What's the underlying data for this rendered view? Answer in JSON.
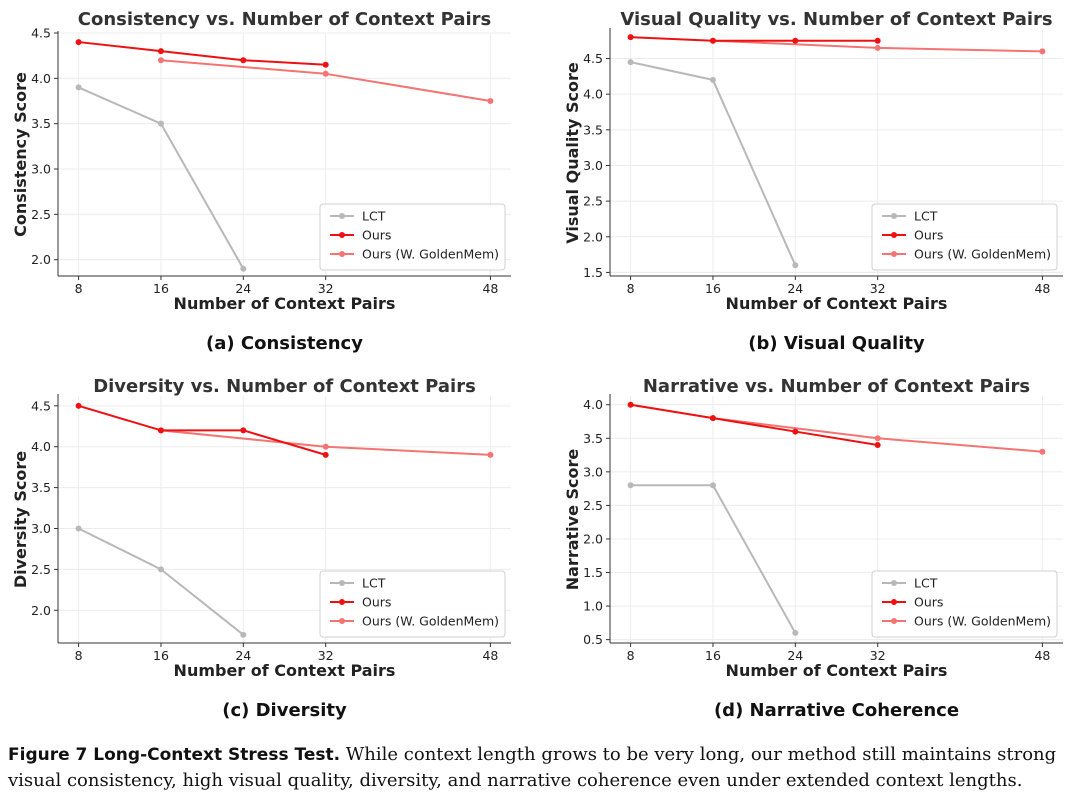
{
  "chart_data": [
    {
      "type": "line",
      "panel_label": "(a)  Consistency",
      "title": "Consistency vs. Number of Context Pairs",
      "xlabel": "Number of Context Pairs",
      "ylabel": "Consistency Score",
      "xticks": [
        8,
        16,
        24,
        32,
        48
      ],
      "yticks": [
        2.0,
        2.5,
        3.0,
        3.5,
        4.0,
        4.5
      ],
      "xlim": [
        6.0,
        50.0
      ],
      "ylim": [
        1.82,
        4.5
      ],
      "grid": true,
      "legend": "lower-right",
      "series": [
        {
          "name": "LCT",
          "color": "#b8b8b8",
          "x": [
            8,
            16,
            24
          ],
          "values": [
            3.9,
            3.5,
            1.9
          ]
        },
        {
          "name": "Ours",
          "color": "#ee1111",
          "x": [
            8,
            16,
            24,
            32
          ],
          "values": [
            4.4,
            4.3,
            4.2,
            4.15
          ]
        },
        {
          "name": "Ours (W. GoldenMem)",
          "color": "#f47474",
          "x": [
            16,
            32,
            48
          ],
          "values": [
            4.2,
            4.05,
            3.75
          ]
        }
      ]
    },
    {
      "type": "line",
      "panel_label": "(b)  Visual Quality",
      "title": "Visual Quality vs. Number of Context Pairs",
      "xlabel": "Number of Context Pairs",
      "ylabel": "Visual Quality Score",
      "xticks": [
        8,
        16,
        24,
        32,
        48
      ],
      "yticks": [
        1.5,
        2.0,
        2.5,
        3.0,
        3.5,
        4.0,
        4.5
      ],
      "xlim": [
        6.0,
        50.0
      ],
      "ylim": [
        1.45,
        4.9
      ],
      "grid": true,
      "legend": "lower-right",
      "series": [
        {
          "name": "LCT",
          "color": "#b8b8b8",
          "x": [
            8,
            16,
            24
          ],
          "values": [
            4.45,
            4.2,
            1.6
          ]
        },
        {
          "name": "Ours",
          "color": "#ee1111",
          "x": [
            8,
            16,
            24,
            32
          ],
          "values": [
            4.8,
            4.75,
            4.75,
            4.75
          ]
        },
        {
          "name": "Ours (W. GoldenMem)",
          "color": "#f47474",
          "x": [
            16,
            32,
            48
          ],
          "values": [
            4.75,
            4.65,
            4.6
          ]
        }
      ]
    },
    {
      "type": "line",
      "panel_label": "(c)  Diversity",
      "title": "Diversity vs. Number of Context Pairs",
      "xlabel": "Number of Context Pairs",
      "ylabel": "Diversity Score",
      "xticks": [
        8,
        16,
        24,
        32,
        48
      ],
      "yticks": [
        2.0,
        2.5,
        3.0,
        3.5,
        4.0,
        4.5
      ],
      "xlim": [
        6.0,
        50.0
      ],
      "ylim": [
        1.6,
        4.62
      ],
      "grid": true,
      "legend": "lower-right",
      "series": [
        {
          "name": "LCT",
          "color": "#b8b8b8",
          "x": [
            8,
            16,
            24
          ],
          "values": [
            3.0,
            2.5,
            1.7
          ]
        },
        {
          "name": "Ours",
          "color": "#ee1111",
          "x": [
            8,
            16,
            24,
            32
          ],
          "values": [
            4.5,
            4.2,
            4.2,
            3.9
          ]
        },
        {
          "name": "Ours (W. GoldenMem)",
          "color": "#f47474",
          "x": [
            16,
            32,
            48
          ],
          "values": [
            4.2,
            4.0,
            3.9
          ]
        }
      ]
    },
    {
      "type": "line",
      "panel_label": "(d)  Narrative Coherence",
      "title": "Narrative vs. Number of Context Pairs",
      "xlabel": "Number of Context Pairs",
      "ylabel": "Narrative Score",
      "xticks": [
        8,
        16,
        24,
        32,
        48
      ],
      "yticks": [
        0.5,
        1.0,
        1.5,
        2.0,
        2.5,
        3.0,
        3.5,
        4.0
      ],
      "xlim": [
        6.0,
        50.0
      ],
      "ylim": [
        0.45,
        4.13
      ],
      "grid": true,
      "legend": "lower-right",
      "series": [
        {
          "name": "LCT",
          "color": "#b8b8b8",
          "x": [
            8,
            16,
            24
          ],
          "values": [
            2.8,
            2.8,
            0.6
          ]
        },
        {
          "name": "Ours",
          "color": "#ee1111",
          "x": [
            8,
            16,
            24,
            32
          ],
          "values": [
            4.0,
            3.8,
            3.6,
            3.4
          ]
        },
        {
          "name": "Ours (W. GoldenMem)",
          "color": "#f47474",
          "x": [
            16,
            32,
            48
          ],
          "values": [
            3.8,
            3.5,
            3.3
          ]
        }
      ]
    }
  ],
  "caption": {
    "label": "Figure 7  Long-Context Stress Test.",
    "text": " While context length grows to be very long, our method still maintains strong visual consistency, high visual quality, diversity, and narrative coherence even under extended context lengths."
  }
}
